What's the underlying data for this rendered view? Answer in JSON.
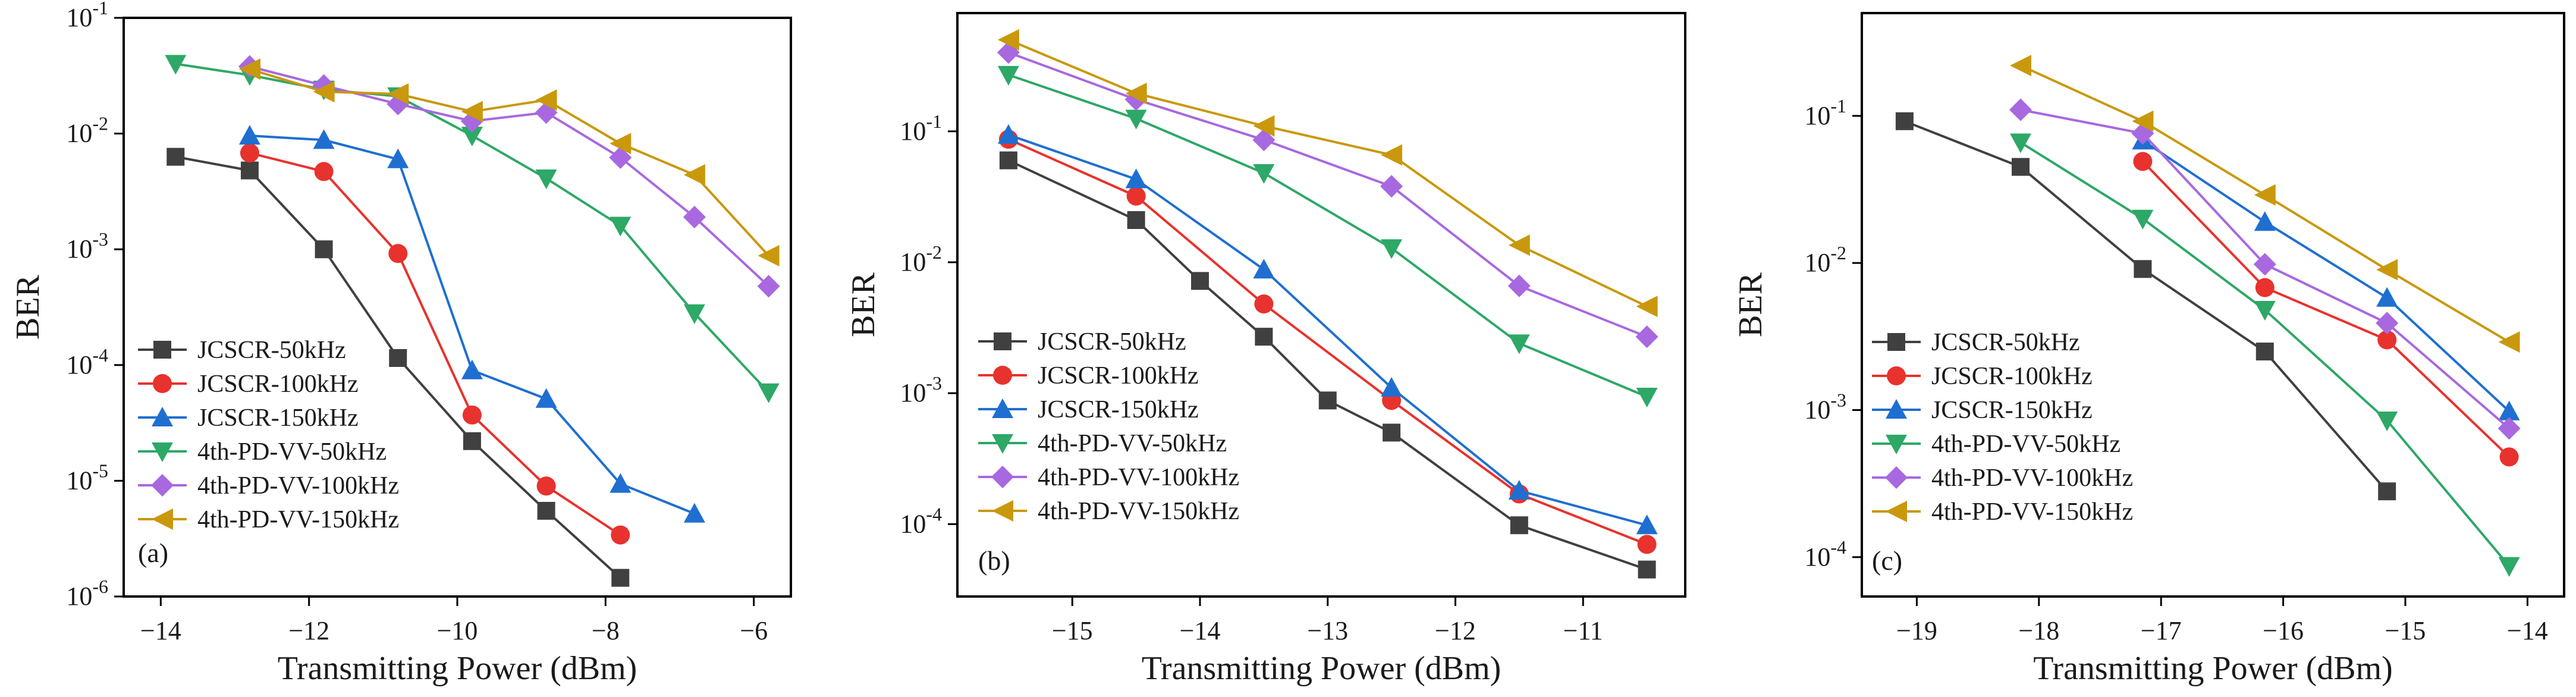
{
  "chart_data": [
    {
      "type": "line",
      "panel_label": "(a)",
      "xlabel": "Transmitting Power (dBm)",
      "ylabel": "BER",
      "yscale": "log",
      "xlim": [
        -14.5,
        -5.5
      ],
      "ylim": [
        1e-06,
        0.1
      ],
      "xticks": [
        -14,
        -12,
        -10,
        -8,
        -6
      ],
      "xtick_labels": [
        "−14",
        "−12",
        "−10",
        "−8",
        "−6"
      ],
      "yticks": [
        1e-06,
        1e-05,
        0.0001,
        0.001,
        0.01,
        0.1
      ],
      "ytick_labels": [
        {
          "base": "10",
          "exp": "-6"
        },
        {
          "base": "10",
          "exp": "-5"
        },
        {
          "base": "10",
          "exp": "-4"
        },
        {
          "base": "10",
          "exp": "-3"
        },
        {
          "base": "10",
          "exp": "-2"
        },
        {
          "base": "10",
          "exp": "-1"
        }
      ],
      "legend_position": "lower-left",
      "series": [
        {
          "name": "JCSCR-50kHz",
          "color": "#404040",
          "marker": "square",
          "x": [
            -13.8,
            -12.8,
            -11.8,
            -10.8,
            -9.8,
            -8.8,
            -7.8
          ],
          "y": [
            0.0063,
            0.0048,
            0.001,
            0.000115,
            2.2e-05,
            5.5e-06,
            1.45e-06
          ]
        },
        {
          "name": "JCSCR-100kHz",
          "color": "#e8322d",
          "marker": "circle",
          "x": [
            -12.8,
            -11.8,
            -10.8,
            -9.8,
            -8.8,
            -7.8
          ],
          "y": [
            0.0068,
            0.0047,
            0.00092,
            3.7e-05,
            9e-06,
            3.4e-06
          ]
        },
        {
          "name": "JCSCR-150kHz",
          "color": "#1f6fd1",
          "marker": "triangle-up",
          "x": [
            -12.8,
            -11.8,
            -10.8,
            -9.8,
            -8.8,
            -7.8,
            -6.8
          ],
          "y": [
            0.0096,
            0.0088,
            0.006,
            9e-05,
            5.1e-05,
            9.4e-06,
            5.2e-06
          ]
        },
        {
          "name": "4th-PD-VV-50kHz",
          "color": "#2da866",
          "marker": "triangle-down",
          "x": [
            -13.8,
            -12.8,
            -11.8,
            -10.8,
            -9.8,
            -8.8,
            -7.8,
            -6.8,
            -5.8
          ],
          "y": [
            0.04,
            0.032,
            0.024,
            0.021,
            0.0096,
            0.0041,
            0.0016,
            0.00028,
            5.8e-05
          ]
        },
        {
          "name": "4th-PD-VV-100kHz",
          "color": "#a868e0",
          "marker": "diamond",
          "x": [
            -12.8,
            -11.8,
            -10.8,
            -9.8,
            -8.8,
            -7.8,
            -6.8,
            -5.8
          ],
          "y": [
            0.038,
            0.026,
            0.018,
            0.0128,
            0.0152,
            0.0062,
            0.0019,
            0.00048
          ]
        },
        {
          "name": "4th-PD-VV-150kHz",
          "color": "#c9980c",
          "marker": "triangle-left",
          "x": [
            -12.8,
            -11.8,
            -10.8,
            -9.8,
            -8.8,
            -7.8,
            -6.8,
            -5.8
          ],
          "y": [
            0.036,
            0.023,
            0.022,
            0.0155,
            0.0195,
            0.0082,
            0.0044,
            0.00088
          ]
        }
      ]
    },
    {
      "type": "line",
      "panel_label": "(b)",
      "xlabel": "Transmitting Power (dBm)",
      "ylabel": "BER",
      "yscale": "log",
      "xlim": [
        -15.9,
        -10.2
      ],
      "ylim": [
        2.8e-05,
        0.8
      ],
      "xticks": [
        -15,
        -14,
        -13,
        -12,
        -11
      ],
      "xtick_labels": [
        "−15",
        "−14",
        "−13",
        "−12",
        "−11"
      ],
      "yticks": [
        0.0001,
        0.001,
        0.01,
        0.1
      ],
      "ytick_labels": [
        {
          "base": "10",
          "exp": "-4"
        },
        {
          "base": "10",
          "exp": "-3"
        },
        {
          "base": "10",
          "exp": "-2"
        },
        {
          "base": "10",
          "exp": "-1"
        }
      ],
      "legend_position": "lower-left",
      "series": [
        {
          "name": "JCSCR-50kHz",
          "color": "#404040",
          "marker": "square",
          "x": [
            -15.5,
            -14.5,
            -14.0,
            -13.5,
            -13.0,
            -12.5,
            -11.5,
            -10.5
          ],
          "y": [
            0.06,
            0.021,
            0.0072,
            0.0027,
            0.00088,
            0.0005,
            9.8e-05,
            4.5e-05
          ]
        },
        {
          "name": "JCSCR-100kHz",
          "color": "#e8322d",
          "marker": "circle",
          "x": [
            -15.5,
            -14.5,
            -13.5,
            -12.5,
            -11.5,
            -10.5
          ],
          "y": [
            0.087,
            0.032,
            0.0048,
            0.00088,
            0.00017,
            7e-05
          ]
        },
        {
          "name": "JCSCR-150kHz",
          "color": "#1f6fd1",
          "marker": "triangle-up",
          "x": [
            -15.5,
            -14.5,
            -13.5,
            -12.5,
            -11.5,
            -10.5
          ],
          "y": [
            0.094,
            0.043,
            0.0088,
            0.0011,
            0.00018,
            9.8e-05
          ]
        },
        {
          "name": "4th-PD-VV-50kHz",
          "color": "#2da866",
          "marker": "triangle-down",
          "x": [
            -15.5,
            -14.5,
            -13.5,
            -12.5,
            -11.5,
            -10.5
          ],
          "y": [
            0.27,
            0.125,
            0.048,
            0.0128,
            0.0024,
            0.00094
          ]
        },
        {
          "name": "4th-PD-VV-100kHz",
          "color": "#a868e0",
          "marker": "diamond",
          "x": [
            -15.5,
            -14.5,
            -13.5,
            -12.5,
            -11.5,
            -10.5
          ],
          "y": [
            0.4,
            0.175,
            0.086,
            0.038,
            0.0066,
            0.0027
          ]
        },
        {
          "name": "4th-PD-VV-150kHz",
          "color": "#c9980c",
          "marker": "triangle-left",
          "x": [
            -15.5,
            -14.5,
            -13.5,
            -12.5,
            -11.5,
            -10.5
          ],
          "y": [
            0.5,
            0.195,
            0.11,
            0.066,
            0.0135,
            0.0046
          ]
        }
      ]
    },
    {
      "type": "line",
      "panel_label": "(c)",
      "xlabel": "Transmitting Power (dBm)",
      "ylabel": "BER",
      "yscale": "log",
      "xlim": [
        -19.45,
        -13.7
      ],
      "ylim": [
        5.4e-05,
        0.5
      ],
      "xticks": [
        -19,
        -18,
        -17,
        -16,
        -15,
        -14
      ],
      "xtick_labels": [
        "−19",
        "−18",
        "−17",
        "−16",
        "−15",
        "−14"
      ],
      "yticks": [
        0.0001,
        0.001,
        0.01,
        0.1
      ],
      "ytick_labels": [
        {
          "base": "10",
          "exp": "-4"
        },
        {
          "base": "10",
          "exp": "-3"
        },
        {
          "base": "10",
          "exp": "-2"
        },
        {
          "base": "10",
          "exp": "-1"
        }
      ],
      "legend_position": "lower-left",
      "series": [
        {
          "name": "JCSCR-50kHz",
          "color": "#404040",
          "marker": "square",
          "x": [
            -19.1,
            -18.15,
            -17.15,
            -16.15,
            -15.15
          ],
          "y": [
            0.092,
            0.045,
            0.0091,
            0.0025,
            0.00028
          ]
        },
        {
          "name": "JCSCR-100kHz",
          "color": "#e8322d",
          "marker": "circle",
          "x": [
            -17.15,
            -16.15,
            -15.15,
            -14.15
          ],
          "y": [
            0.049,
            0.0068,
            0.003,
            0.00048
          ]
        },
        {
          "name": "JCSCR-150kHz",
          "color": "#1f6fd1",
          "marker": "triangle-up",
          "x": [
            -17.15,
            -16.15,
            -15.15,
            -14.15
          ],
          "y": [
            0.068,
            0.019,
            0.0058,
            0.00098
          ]
        },
        {
          "name": "4th-PD-VV-50kHz",
          "color": "#2da866",
          "marker": "triangle-down",
          "x": [
            -18.15,
            -17.15,
            -16.15,
            -15.15,
            -14.15
          ],
          "y": [
            0.066,
            0.02,
            0.0048,
            0.00085,
            8.7e-05
          ]
        },
        {
          "name": "4th-PD-VV-100kHz",
          "color": "#a868e0",
          "marker": "diamond",
          "x": [
            -18.15,
            -17.15,
            -16.15,
            -15.15,
            -14.15
          ],
          "y": [
            0.11,
            0.076,
            0.0098,
            0.0039,
            0.00075
          ]
        },
        {
          "name": "4th-PD-VV-150kHz",
          "color": "#c9980c",
          "marker": "triangle-left",
          "x": [
            -18.15,
            -17.15,
            -16.15,
            -15.15,
            -14.15
          ],
          "y": [
            0.22,
            0.092,
            0.029,
            0.009,
            0.0029
          ]
        }
      ]
    }
  ]
}
